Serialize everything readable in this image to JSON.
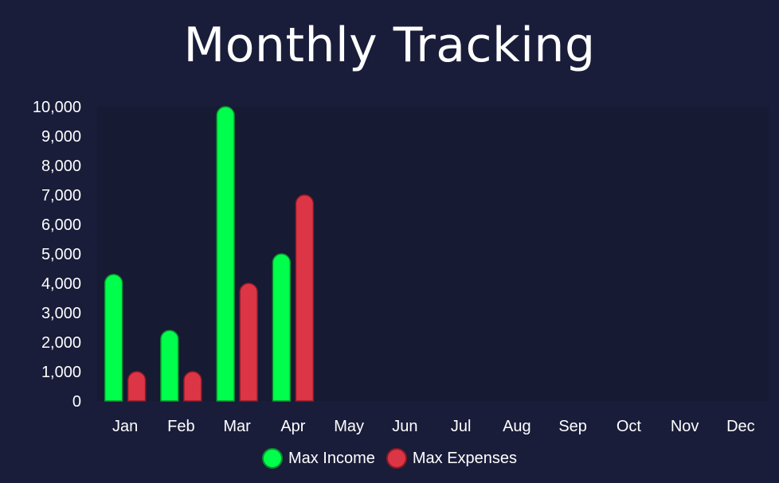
{
  "chart_data": {
    "type": "bar",
    "title": "Monthly Tracking",
    "xlabel": "",
    "ylabel": "",
    "categories": [
      "Jan",
      "Feb",
      "Mar",
      "Apr",
      "May",
      "Jun",
      "Jul",
      "Aug",
      "Sep",
      "Oct",
      "Nov",
      "Dec"
    ],
    "series": [
      {
        "name": "Max Income",
        "color": "#00ff4c",
        "border_color": "#0f8a2e",
        "values": [
          4300,
          2400,
          10000,
          5000,
          null,
          null,
          null,
          null,
          null,
          null,
          null,
          null
        ]
      },
      {
        "name": "Max Expenses",
        "color": "#dc3545",
        "border_color": "#8b1a24",
        "values": [
          1000,
          1000,
          4000,
          7000,
          null,
          null,
          null,
          null,
          null,
          null,
          null,
          null
        ]
      }
    ],
    "ylim": [
      0,
      10000
    ],
    "yticks": [
      0,
      1000,
      2000,
      3000,
      4000,
      5000,
      6000,
      7000,
      8000,
      9000,
      10000
    ],
    "ytick_labels": [
      "0",
      "1,000",
      "2,000",
      "3,000",
      "4,000",
      "5,000",
      "6,000",
      "7,000",
      "8,000",
      "9,000",
      "10,000"
    ],
    "grid": false,
    "legend_position": "bottom-center"
  },
  "colors": {
    "background": "#191d3a",
    "plot_background": "#161a33",
    "text": "#ffffff"
  }
}
